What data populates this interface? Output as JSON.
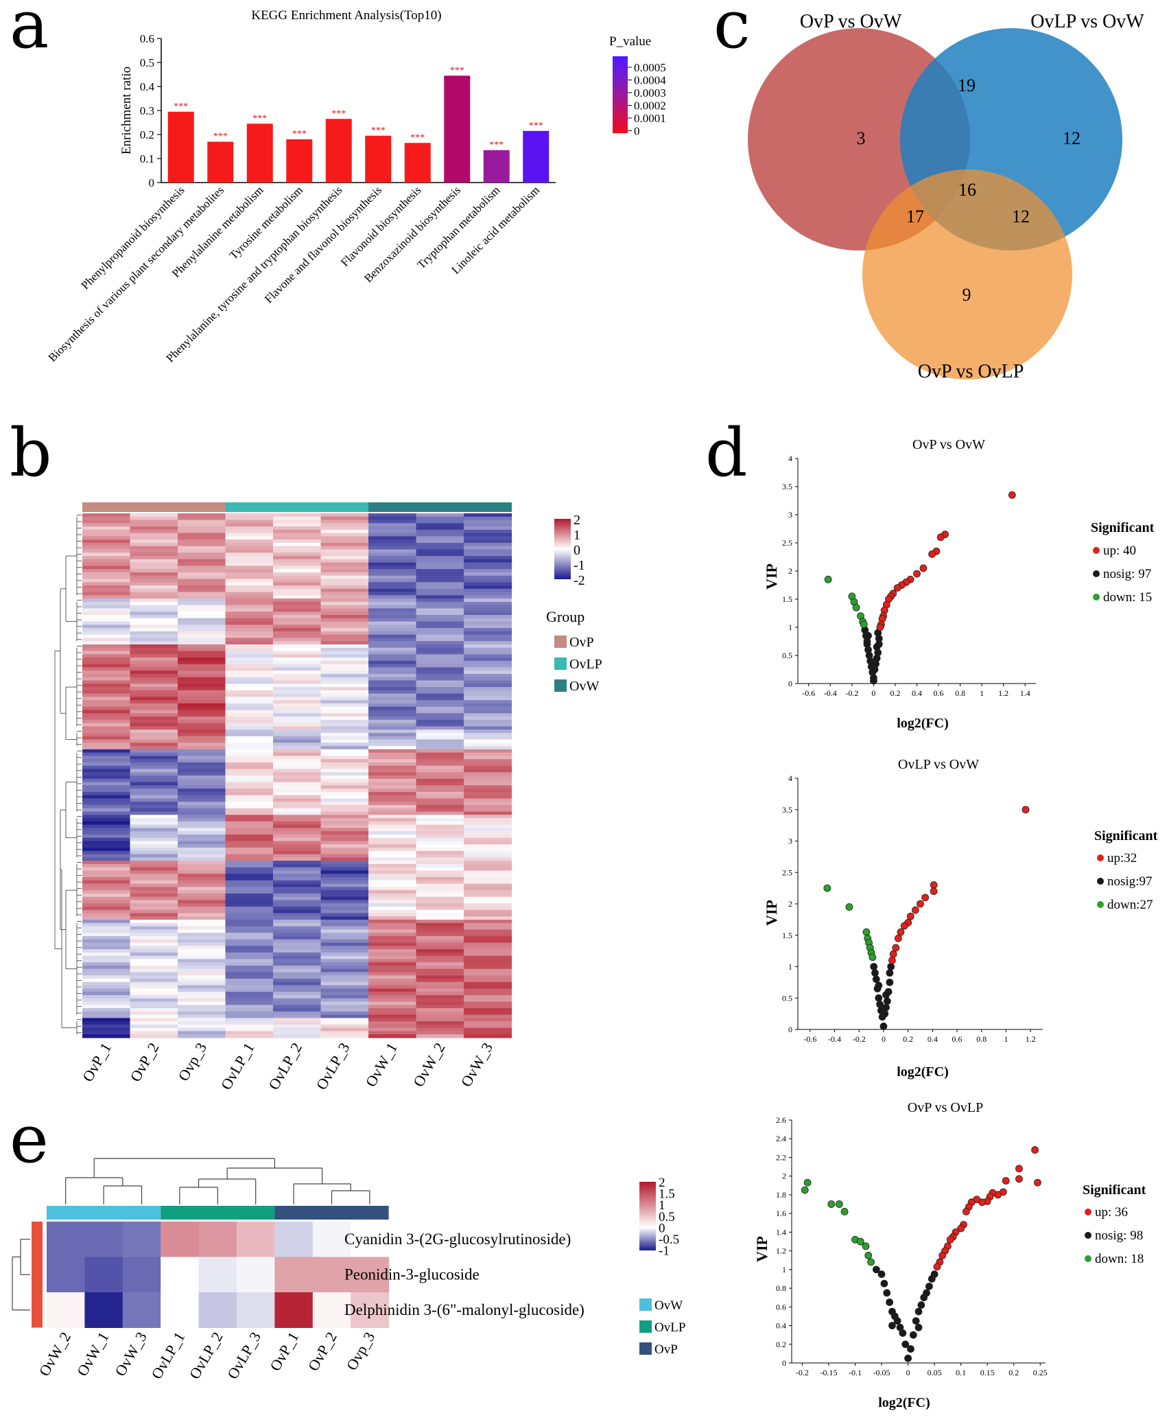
{
  "panel_labels": {
    "a": "a",
    "b": "b",
    "c": "c",
    "d": "d",
    "e": "e"
  },
  "chart_data": [
    {
      "panel": "a",
      "type": "bar",
      "title": "KEGG Enrichment Analysis(Top10)",
      "ylabel": "Enrichment ratio",
      "ylim": [
        0,
        0.6
      ],
      "yticks": [
        "0",
        "0.1",
        "0.2",
        "0.3",
        "0.4",
        "0.5",
        "0.6"
      ],
      "categories": [
        "Phenylpropanoid biosynthesis",
        "Biosynthesis of various plant secondary metabolites",
        "Phenylalanine metabolism",
        "Tyrosine metabolism",
        "Phenylalanine, tyrosine and tryptophan biosynthesis",
        "Flavone and flavonol biosynthesis",
        "Flavonoid biosynthesis",
        "Benzoxazinoid biosynthesis",
        "Tryptophan metabolism",
        "Linoleic acid metabolism"
      ],
      "values": [
        0.295,
        0.17,
        0.245,
        0.18,
        0.265,
        0.195,
        0.165,
        0.445,
        0.135,
        0.215
      ],
      "bar_colors": [
        "#f71a1a",
        "#f71a1a",
        "#f71a1a",
        "#f71a1a",
        "#f71a1a",
        "#f71a1a",
        "#f71a1a",
        "#b0096a",
        "#9a1a9e",
        "#5a14f2"
      ],
      "stars": [
        "***",
        "***",
        "***",
        "***",
        "***",
        "***",
        "***",
        "***",
        "***",
        "***"
      ],
      "legend": {
        "title": "P_value",
        "ticks": [
          "0.0005",
          "0.0004",
          "0.0003",
          "0.0002",
          "0.0001",
          "0"
        ],
        "colors": [
          "#4b1aff",
          "#f50a19"
        ]
      }
    },
    {
      "panel": "b",
      "type": "heatmap",
      "columns": [
        "OvP_1",
        "OvP_2",
        "Ovp_3",
        "OvLP_1",
        "OvLP_2",
        "OvLP_3",
        "OvW_1",
        "OvW_2",
        "OvW_3"
      ],
      "column_groups": [
        "OvP",
        "OvP",
        "OvP",
        "OvLP",
        "OvLP",
        "OvLP",
        "OvW",
        "OvW",
        "OvW"
      ],
      "scale": {
        "min": -2,
        "max": 2,
        "ticks": [
          "2",
          "1",
          "0",
          "-1",
          "-2"
        ]
      },
      "legend": {
        "title": "Group",
        "items": [
          {
            "label": "OvP",
            "color": "#c48b83"
          },
          {
            "label": "OvLP",
            "color": "#3bb8b0"
          },
          {
            "label": "OvW",
            "color": "#2d7f82"
          }
        ]
      },
      "clusters": [
        {
          "rows": 26,
          "values": [
            0.9,
            0.8,
            0.9,
            0.5,
            0.5,
            0.6,
            -1.3,
            -1.3,
            -1.3
          ]
        },
        {
          "rows": 14,
          "values": [
            -0.2,
            -0.2,
            -0.2,
            1.0,
            1.0,
            0.9,
            -1.0,
            -1.0,
            -1.0
          ]
        },
        {
          "rows": 26,
          "values": [
            1.2,
            1.3,
            1.5,
            0.0,
            0.0,
            -0.1,
            -1.1,
            -1.1,
            -0.9
          ]
        },
        {
          "rows": 6,
          "values": [
            1.0,
            1.0,
            1.2,
            -0.3,
            -0.5,
            -0.4,
            -0.5,
            -0.4,
            -0.3
          ]
        },
        {
          "rows": 20,
          "values": [
            -1.4,
            -1.2,
            -1.2,
            0.3,
            0.3,
            0.2,
            1.0,
            1.1,
            1.1
          ]
        },
        {
          "rows": 14,
          "values": [
            -1.6,
            -0.4,
            -0.6,
            1.2,
            1.1,
            1.0,
            0.2,
            0.2,
            0.2
          ]
        },
        {
          "rows": 18,
          "values": [
            1.0,
            1.0,
            1.0,
            -1.4,
            -1.3,
            -1.4,
            0.2,
            0.3,
            0.4
          ]
        },
        {
          "rows": 30,
          "values": [
            -0.5,
            -0.2,
            -0.2,
            -1.0,
            -1.0,
            -0.9,
            1.2,
            1.3,
            1.3
          ]
        },
        {
          "rows": 6,
          "values": [
            -2,
            0.2,
            -0.4,
            0.1,
            0.0,
            0.2,
            1.4,
            1.2,
            1.4
          ]
        }
      ]
    },
    {
      "panel": "c",
      "type": "venn",
      "sets": [
        "OvP vs OvW",
        "OvLP vs OvW",
        "OvP vs OvLP"
      ],
      "regions": {
        "OvP_only": "3",
        "OvLP_only": "12",
        "OvPvsOvLP_only": "9",
        "OvP_OvLP": "19",
        "OvP_OvPvsOvLP": "17",
        "OvLP_OvPvsOvLP": "12",
        "all": "16"
      }
    },
    {
      "panel": "d",
      "type": "scatter",
      "title": "OvP vs OvW",
      "xlabel": "log2(FC)",
      "ylabel": "VIP",
      "xlim": [
        -0.7,
        1.5
      ],
      "ylim": [
        0,
        4
      ],
      "xticks": [
        "-0.6",
        "-0.4",
        "-0.2",
        "0",
        "0.2",
        "0.4",
        "0.6",
        "0.8",
        "1",
        "1.2",
        "1.4"
      ],
      "yticks": [
        "0",
        "0.5",
        "1",
        "1.5",
        "2",
        "2.5",
        "3",
        "3.5",
        "4"
      ],
      "legend": {
        "title": "Significant",
        "items": [
          "up: 40",
          "nosig: 97",
          "down: 15"
        ]
      },
      "up": [
        [
          1.28,
          3.35
        ],
        [
          0.66,
          2.65
        ],
        [
          0.62,
          2.6
        ],
        [
          0.58,
          2.35
        ],
        [
          0.54,
          2.3
        ],
        [
          0.46,
          2.05
        ],
        [
          0.4,
          1.95
        ],
        [
          0.34,
          1.85
        ],
        [
          0.3,
          1.8
        ],
        [
          0.26,
          1.75
        ],
        [
          0.22,
          1.7
        ],
        [
          0.18,
          1.6
        ],
        [
          0.16,
          1.55
        ],
        [
          0.14,
          1.5
        ],
        [
          0.12,
          1.4
        ],
        [
          0.1,
          1.3
        ],
        [
          0.09,
          1.2
        ],
        [
          0.08,
          1.15
        ],
        [
          0.07,
          1.05
        ],
        [
          0.06,
          1.0
        ]
      ],
      "down": [
        [
          -0.42,
          1.85
        ],
        [
          -0.2,
          1.55
        ],
        [
          -0.18,
          1.45
        ],
        [
          -0.16,
          1.35
        ],
        [
          -0.12,
          1.2
        ],
        [
          -0.1,
          1.1
        ],
        [
          -0.09,
          1.05
        ]
      ],
      "nosig": [
        [
          -0.08,
          0.95
        ],
        [
          -0.07,
          0.85
        ],
        [
          -0.06,
          0.75
        ],
        [
          -0.05,
          0.6
        ],
        [
          -0.04,
          0.5
        ],
        [
          -0.03,
          0.4
        ],
        [
          -0.02,
          0.3
        ],
        [
          -0.01,
          0.2
        ],
        [
          0,
          0.1
        ],
        [
          0,
          0.05
        ],
        [
          0.01,
          0.25
        ],
        [
          0.02,
          0.35
        ],
        [
          0.03,
          0.45
        ],
        [
          0.04,
          0.55
        ],
        [
          0.05,
          0.7
        ],
        [
          0.05,
          0.8
        ],
        [
          0.04,
          0.9
        ],
        [
          -0.05,
          0.85
        ],
        [
          -0.06,
          0.7
        ],
        [
          0.03,
          0.65
        ]
      ]
    },
    {
      "panel": "d",
      "type": "scatter",
      "title": "OvLP vs OvW",
      "xlabel": "log2(FC)",
      "ylabel": "VIP",
      "xlim": [
        -0.7,
        1.3
      ],
      "ylim": [
        0,
        4
      ],
      "xticks": [
        "-0.6",
        "-0.4",
        "-0.2",
        "0",
        "0.2",
        "0.4",
        "0.6",
        "0.8",
        "1",
        "1.2"
      ],
      "yticks": [
        "0",
        "0.5",
        "1",
        "1.5",
        "2",
        "2.5",
        "3",
        "3.5",
        "4"
      ],
      "legend": {
        "title": "Significant",
        "items": [
          "up:32",
          "nosig:97",
          "down:27"
        ]
      },
      "up": [
        [
          1.16,
          3.5
        ],
        [
          0.41,
          2.3
        ],
        [
          0.41,
          2.2
        ],
        [
          0.34,
          2.1
        ],
        [
          0.3,
          2.0
        ],
        [
          0.26,
          1.9
        ],
        [
          0.22,
          1.8
        ],
        [
          0.2,
          1.7
        ],
        [
          0.17,
          1.65
        ],
        [
          0.14,
          1.55
        ],
        [
          0.12,
          1.45
        ],
        [
          0.1,
          1.3
        ],
        [
          0.08,
          1.2
        ],
        [
          0.07,
          1.1
        ]
      ],
      "down": [
        [
          -0.46,
          2.25
        ],
        [
          -0.28,
          1.95
        ],
        [
          -0.14,
          1.55
        ],
        [
          -0.13,
          1.45
        ],
        [
          -0.12,
          1.38
        ],
        [
          -0.11,
          1.3
        ],
        [
          -0.1,
          1.22
        ],
        [
          -0.09,
          1.15
        ]
      ],
      "nosig": [
        [
          -0.08,
          1.0
        ],
        [
          -0.07,
          0.9
        ],
        [
          -0.06,
          0.8
        ],
        [
          -0.05,
          0.65
        ],
        [
          -0.04,
          0.5
        ],
        [
          -0.03,
          0.4
        ],
        [
          -0.02,
          0.3
        ],
        [
          -0.01,
          0.2
        ],
        [
          0,
          0.05
        ],
        [
          0.01,
          0.25
        ],
        [
          0.02,
          0.35
        ],
        [
          0.03,
          0.45
        ],
        [
          0.04,
          0.6
        ],
        [
          0.05,
          0.75
        ],
        [
          0.05,
          0.9
        ],
        [
          0.06,
          1.0
        ],
        [
          -0.04,
          0.7
        ],
        [
          0.02,
          0.55
        ]
      ]
    },
    {
      "panel": "d",
      "type": "scatter",
      "title": "OvP vs OvLP",
      "xlabel": "log2(FC)",
      "ylabel": "VIP",
      "xlim": [
        -0.22,
        0.26
      ],
      "ylim": [
        0,
        2.6
      ],
      "xticks": [
        "-0.2",
        "-0.15",
        "-0.1",
        "-0.05",
        "0",
        "0.05",
        "0.1",
        "0.15",
        "0.2",
        "0.25"
      ],
      "yticks": [
        "0",
        "0.2",
        "0.4",
        "0.6",
        "0.8",
        "1",
        "1.2",
        "1.4",
        "1.6",
        "1.8",
        "2",
        "2.2",
        "2.4",
        "2.6"
      ],
      "legend": {
        "title": "Significant",
        "items": [
          "up: 36",
          "nosig: 98",
          "down: 18"
        ]
      },
      "up": [
        [
          0.24,
          2.28
        ],
        [
          0.245,
          1.93
        ],
        [
          0.21,
          2.08
        ],
        [
          0.21,
          1.97
        ],
        [
          0.185,
          1.95
        ],
        [
          0.18,
          1.83
        ],
        [
          0.17,
          1.8
        ],
        [
          0.16,
          1.82
        ],
        [
          0.155,
          1.78
        ],
        [
          0.15,
          1.73
        ],
        [
          0.14,
          1.72
        ],
        [
          0.13,
          1.75
        ],
        [
          0.12,
          1.72
        ],
        [
          0.115,
          1.67
        ],
        [
          0.11,
          1.62
        ],
        [
          0.105,
          1.48
        ],
        [
          0.1,
          1.44
        ],
        [
          0.09,
          1.4
        ],
        [
          0.085,
          1.35
        ],
        [
          0.08,
          1.32
        ],
        [
          0.075,
          1.25
        ],
        [
          0.07,
          1.2
        ],
        [
          0.065,
          1.15
        ],
        [
          0.06,
          1.08
        ],
        [
          0.055,
          1.03
        ]
      ],
      "down": [
        [
          -0.19,
          1.93
        ],
        [
          -0.195,
          1.85
        ],
        [
          -0.145,
          1.7
        ],
        [
          -0.13,
          1.7
        ],
        [
          -0.12,
          1.62
        ],
        [
          -0.1,
          1.32
        ],
        [
          -0.09,
          1.3
        ],
        [
          -0.08,
          1.25
        ],
        [
          -0.075,
          1.15
        ],
        [
          -0.07,
          1.08
        ]
      ],
      "nosig": [
        [
          -0.06,
          1.0
        ],
        [
          -0.05,
          0.95
        ],
        [
          -0.045,
          0.85
        ],
        [
          -0.04,
          0.75
        ],
        [
          -0.035,
          0.65
        ],
        [
          -0.03,
          0.55
        ],
        [
          -0.025,
          0.5
        ],
        [
          -0.02,
          0.45
        ],
        [
          -0.015,
          0.38
        ],
        [
          -0.01,
          0.32
        ],
        [
          -0.005,
          0.2
        ],
        [
          0,
          0.05
        ],
        [
          0.005,
          0.15
        ],
        [
          0.01,
          0.3
        ],
        [
          0.015,
          0.45
        ],
        [
          0.02,
          0.55
        ],
        [
          0.025,
          0.62
        ],
        [
          0.03,
          0.7
        ],
        [
          0.035,
          0.75
        ],
        [
          0.04,
          0.82
        ],
        [
          0.045,
          0.9
        ],
        [
          0.05,
          0.95
        ],
        [
          -0.03,
          0.4
        ],
        [
          0.02,
          0.38
        ]
      ]
    },
    {
      "panel": "e",
      "type": "heatmap",
      "columns": [
        "OvW_2",
        "OvW_1",
        "OvW_3",
        "OvLP_1",
        "OvLP_2",
        "OvLP_3",
        "OvP_1",
        "OvP_2",
        "Ovp_3"
      ],
      "rows": [
        "Cyanidin 3-(2G-glucosylrutinoside)",
        "Peonidin-3-glucoside",
        "Delphinidin 3-(6\"-malonyl-glucoside)"
      ],
      "values": [
        [
          -1.3,
          -1.3,
          -1.2,
          1.0,
          0.9,
          0.6,
          -0.4,
          -0.1,
          0.0
        ],
        [
          -1.3,
          -1.5,
          -1.3,
          0.0,
          -0.2,
          -0.1,
          0.8,
          0.8,
          0.8
        ],
        [
          0.1,
          -1.9,
          -1.2,
          0.0,
          -0.5,
          -0.3,
          1.9,
          0.1,
          0.5
        ]
      ],
      "scale": {
        "min": -1,
        "max": 2,
        "ticks": [
          "2",
          "1.5",
          "1",
          "0.5",
          "0",
          "-0.5",
          "-1"
        ]
      },
      "legend": {
        "items": [
          {
            "label": "OvW",
            "color": "#4cc0dc"
          },
          {
            "label": "OvLP",
            "color": "#10a080"
          },
          {
            "label": "OvP",
            "color": "#33507f"
          }
        ]
      }
    }
  ]
}
